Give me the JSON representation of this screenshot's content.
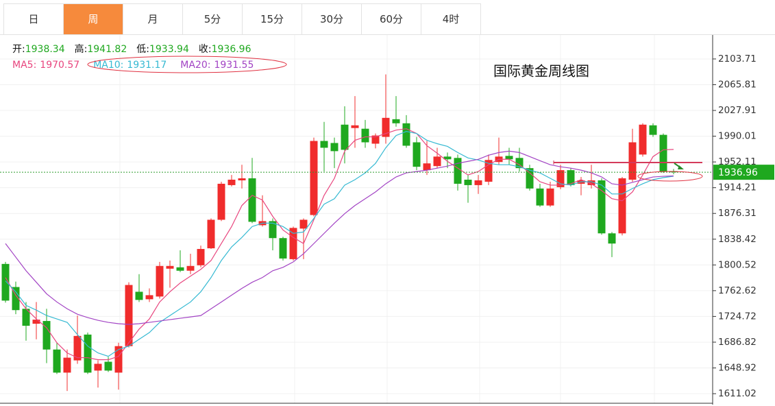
{
  "tabs": [
    "日",
    "周",
    "月",
    "5分",
    "15分",
    "30分",
    "60分",
    "4时"
  ],
  "active_tab": 1,
  "chart_data": {
    "type": "candlestick",
    "title": "国际黄金周线图",
    "ohlc_labels": [
      "开:",
      "高:",
      "低:",
      "收:"
    ],
    "up_color": "#f02c2c",
    "down_color": "#1fa81f",
    "open": [
      1802,
      1768,
      1736,
      1714,
      1718,
      1676,
      1642,
      1660,
      1698,
      1645,
      1658,
      1642,
      1681,
      1761,
      1750,
      1754,
      1795,
      1797,
      1792,
      1800,
      1825,
      1867,
      1918,
      1925,
      1928,
      1859,
      1865,
      1840,
      1809,
      1854,
      1874,
      1983,
      1980,
      2007,
      2002,
      2001,
      1979,
      1989,
      2015,
      2009,
      1981,
      1940,
      1946,
      1960,
      1958,
      1926,
      1918,
      1923,
      1952,
      1961,
      1958,
      1943,
      1913,
      1888,
      1915,
      1940,
      1920,
      1918,
      1925,
      1847,
      1847,
      1926,
      1963,
      2006,
      1992,
      1938.34
    ],
    "high": [
      1805,
      1776,
      1746,
      1746,
      1736,
      1686,
      1676,
      1726,
      1701,
      1660,
      1665,
      1686,
      1775,
      1787,
      1766,
      1805,
      1807,
      1822,
      1817,
      1829,
      1869,
      1923,
      1933,
      1948,
      1958,
      1903,
      1869,
      1842,
      1857,
      1869,
      1988,
      2011,
      1988,
      2034,
      2049,
      2014,
      1994,
      2081,
      2049,
      2021,
      1989,
      1983,
      1973,
      1966,
      1963,
      1933,
      1933,
      1963,
      1988,
      1973,
      1973,
      1948,
      1920,
      1923,
      1948,
      1943,
      1930,
      1948,
      1928,
      1849,
      1930,
      2001,
      2009,
      2009,
      1994,
      1941.82
    ],
    "low": [
      1745,
      1728,
      1689,
      1691,
      1656,
      1640,
      1615,
      1655,
      1640,
      1620,
      1643,
      1617,
      1679,
      1746,
      1746,
      1751,
      1767,
      1790,
      1787,
      1797,
      1824,
      1865,
      1916,
      1913,
      1862,
      1857,
      1822,
      1807,
      1807,
      1809,
      1872,
      1938,
      1943,
      1950,
      1973,
      1973,
      1972,
      1979,
      2004,
      1973,
      1940,
      1933,
      1943,
      1943,
      1910,
      1892,
      1905,
      1918,
      1948,
      1948,
      1938,
      1910,
      1886,
      1886,
      1912,
      1916,
      1903,
      1913,
      1845,
      1812,
      1844,
      1923,
      1960,
      1989,
      1936,
      1933.94
    ],
    "close": [
      1748,
      1734,
      1711,
      1720,
      1676,
      1642,
      1664,
      1696,
      1642,
      1655,
      1645,
      1681,
      1771,
      1749,
      1756,
      1799,
      1799,
      1792,
      1799,
      1824,
      1867,
      1920,
      1926,
      1928,
      1864,
      1865,
      1840,
      1810,
      1855,
      1867,
      1983,
      1973,
      1968,
      1970,
      2006,
      1981,
      1991,
      2017,
      2009,
      1976,
      1945,
      1950,
      1960,
      1956,
      1920,
      1918,
      1925,
      1955,
      1960,
      1956,
      1943,
      1913,
      1888,
      1913,
      1940,
      1918,
      1925,
      1925,
      1847,
      1832,
      1928,
      1981,
      2007,
      1992,
      1938,
      1936.96
    ],
    "series": [
      {
        "name": "MA5:",
        "color": "#e8457e",
        "values": [
          1782,
          1756,
          1736,
          1721,
          1708,
          1686,
          1671,
          1664,
          1664,
          1661,
          1661,
          1666,
          1686,
          1706,
          1721,
          1746,
          1761,
          1774,
          1784,
          1794,
          1807,
          1832,
          1857,
          1888,
          1903,
          1896,
          1872,
          1852,
          1841,
          1832,
          1867,
          1903,
          1928,
          1968,
          1984,
          1989,
          1989,
          1994,
          1999,
          2001,
          1994,
          1976,
          1965,
          1953,
          1943,
          1933,
          1938,
          1948,
          1956,
          1956,
          1948,
          1936,
          1923,
          1918,
          1918,
          1920,
          1926,
          1920,
          1910,
          1898,
          1895,
          1908,
          1933,
          1960,
          1970,
          1970.57
        ]
      },
      {
        "name": "MA10:",
        "color": "#35b9d2",
        "values": [
          1777,
          1761,
          1741,
          1734,
          1726,
          1721,
          1716,
          1698,
          1681,
          1671,
          1666,
          1676,
          1681,
          1691,
          1701,
          1716,
          1726,
          1736,
          1746,
          1761,
          1782,
          1807,
          1827,
          1841,
          1857,
          1862,
          1862,
          1857,
          1847,
          1849,
          1869,
          1890,
          1898,
          1918,
          1926,
          1936,
          1950,
          1973,
          1991,
          1997,
          1994,
          1984,
          1979,
          1975,
          1966,
          1958,
          1955,
          1950,
          1948,
          1948,
          1945,
          1940,
          1936,
          1928,
          1920,
          1918,
          1923,
          1923,
          1918,
          1905,
          1905,
          1913,
          1920,
          1926,
          1929,
          1931.17
        ]
      },
      {
        "name": "MA20:",
        "color": "#a243c4",
        "values": [
          1832,
          1812,
          1792,
          1775,
          1758,
          1746,
          1736,
          1728,
          1723,
          1719,
          1716,
          1714,
          1713,
          1714,
          1716,
          1718,
          1720,
          1722,
          1724,
          1726,
          1736,
          1746,
          1756,
          1766,
          1775,
          1782,
          1792,
          1797,
          1805,
          1817,
          1832,
          1847,
          1862,
          1876,
          1888,
          1898,
          1908,
          1920,
          1930,
          1936,
          1938,
          1940,
          1943,
          1946,
          1950,
          1953,
          1956,
          1962,
          1966,
          1968,
          1966,
          1960,
          1954,
          1948,
          1945,
          1943,
          1940,
          1936,
          1930,
          1920,
          1918,
          1922,
          1926,
          1930,
          1931,
          1931.55
        ]
      }
    ],
    "ylim": [
      1594.9,
      2140.0
    ],
    "yticks": [
      1611.02,
      1648.92,
      1686.82,
      1724.72,
      1762.62,
      1800.52,
      1838.42,
      1876.31,
      1914.21,
      1952.11,
      1990.01,
      2027.91,
      2065.81,
      2103.71
    ],
    "grid": true
  }
}
